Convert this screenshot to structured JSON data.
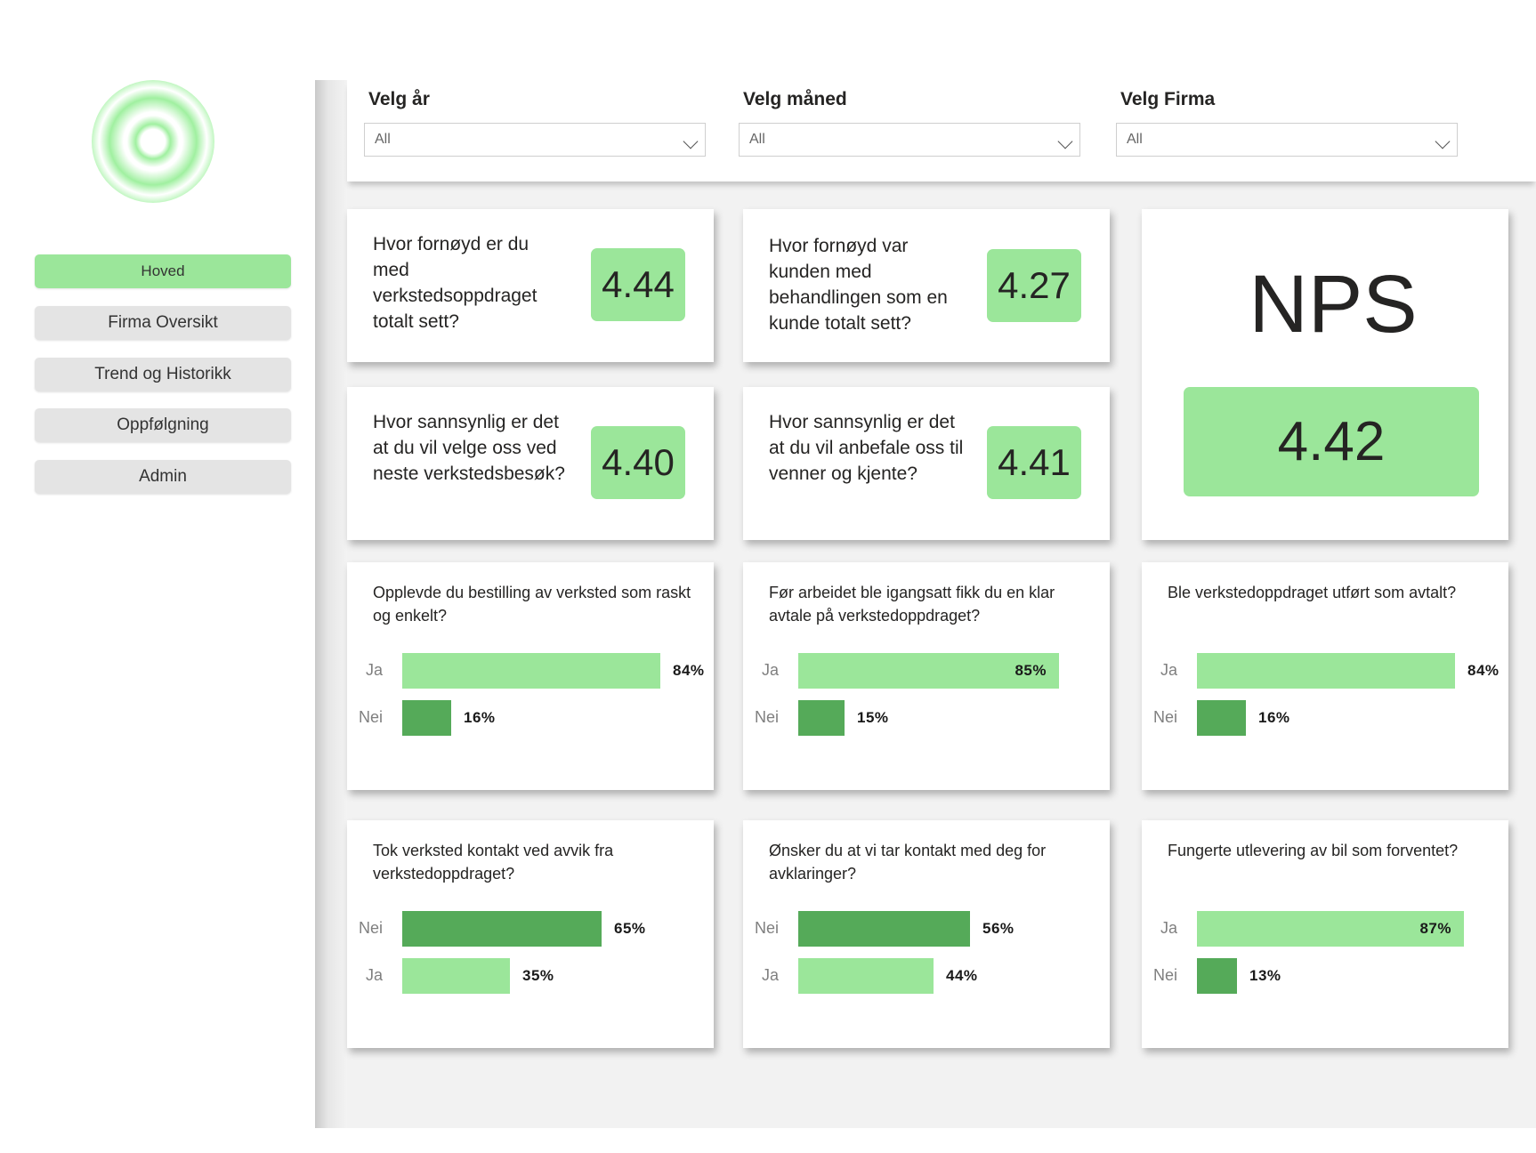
{
  "colors": {
    "light_green": "#9be69a",
    "dark_green": "#55aa59",
    "nav_grey": "#e4e4e4"
  },
  "sidebar": {
    "logo_icon": "concentric-circles-logo",
    "items": [
      {
        "label": "Hoved",
        "active": true
      },
      {
        "label": "Firma Oversikt",
        "active": false
      },
      {
        "label": "Trend og Historikk",
        "active": false
      },
      {
        "label": "Oppfølgning",
        "active": false
      },
      {
        "label": "Admin",
        "active": false
      }
    ]
  },
  "filters": [
    {
      "label": "Velg år",
      "value": "All"
    },
    {
      "label": "Velg måned",
      "value": "All"
    },
    {
      "label": "Velg Firma",
      "value": "All"
    }
  ],
  "kpis": [
    {
      "question": "Hvor fornøyd er du med verkstedsoppdraget totalt sett?",
      "value": "4.44"
    },
    {
      "question": "Hvor fornøyd var kunden med behandlingen som en kunde totalt sett?",
      "value": "4.27"
    },
    {
      "question": "Hvor sannsynlig er det at du vil velge oss ved neste verkstedsbesøk?",
      "value": "4.40"
    },
    {
      "question": "Hvor sannsynlig er det at du vil anbefale oss til venner og kjente?",
      "value": "4.41"
    }
  ],
  "nps": {
    "title": "NPS",
    "value": "4.42"
  },
  "chart_data": [
    {
      "type": "bar",
      "title": "Opplevde du bestilling av verksted som raskt og enkelt?",
      "categories": [
        "Ja",
        "Nei"
      ],
      "values": [
        84,
        16
      ],
      "labels": [
        "84%",
        "16%"
      ]
    },
    {
      "type": "bar",
      "title": "Før arbeidet ble igangsatt fikk du en klar avtale på verkstedoppdraget?",
      "categories": [
        "Ja",
        "Nei"
      ],
      "values": [
        85,
        15
      ],
      "labels": [
        "85%",
        "15%"
      ]
    },
    {
      "type": "bar",
      "title": "Ble verkstedoppdraget utført som avtalt?",
      "categories": [
        "Ja",
        "Nei"
      ],
      "values": [
        84,
        16
      ],
      "labels": [
        "84%",
        "16%"
      ]
    },
    {
      "type": "bar",
      "title": "Tok verksted kontakt ved avvik fra verkstedoppdraget?",
      "categories": [
        "Nei",
        "Ja"
      ],
      "values": [
        65,
        35
      ],
      "labels": [
        "65%",
        "35%"
      ]
    },
    {
      "type": "bar",
      "title": "Ønsker du at vi tar kontakt med deg for avklaringer?",
      "categories": [
        "Nei",
        "Ja"
      ],
      "values": [
        56,
        44
      ],
      "labels": [
        "56%",
        "44%"
      ]
    },
    {
      "type": "bar",
      "title": "Fungerte utlevering av bil som forventet?",
      "categories": [
        "Ja",
        "Nei"
      ],
      "values": [
        87,
        13
      ],
      "labels": [
        "87%",
        "13%"
      ]
    }
  ]
}
